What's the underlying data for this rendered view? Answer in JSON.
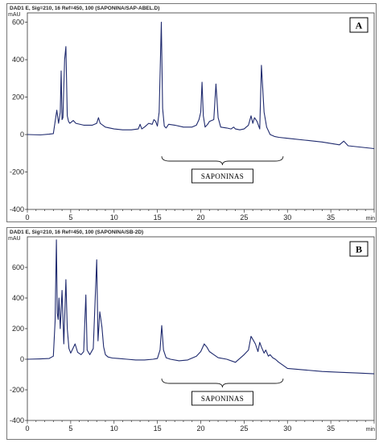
{
  "chart_data": [
    {
      "type": "line",
      "panel_label": "A",
      "header": "DAD1 E, Sig=210, 16 Ref=450, 100 (SAPONINA/SAP-ABEL.D)",
      "y_unit": "mAU",
      "x_unit": "min",
      "xlim": [
        0,
        40
      ],
      "ylim": [
        -400,
        650
      ],
      "x_ticks": [
        0,
        5,
        10,
        15,
        20,
        25,
        30,
        35
      ],
      "y_ticks": [
        -400,
        -200,
        0,
        200,
        400,
        600
      ],
      "annotation": "SAPONINAS",
      "annotation_range": [
        15.5,
        29.5
      ],
      "grid": false,
      "series": [
        {
          "color": "#1f2a6e",
          "x": [
            0.0,
            1.5,
            2.5,
            3.0,
            3.4,
            3.6,
            3.8,
            3.9,
            4.0,
            4.1,
            4.3,
            4.45,
            4.6,
            4.75,
            4.9,
            5.3,
            5.6,
            6.5,
            7.5,
            8.0,
            8.2,
            8.4,
            9.0,
            10.0,
            11.0,
            12.0,
            12.8,
            13.0,
            13.2,
            13.5,
            14.0,
            14.4,
            14.6,
            14.8,
            15.0,
            15.2,
            15.45,
            15.6,
            15.8,
            16.0,
            16.3,
            17.0,
            18.0,
            18.5,
            19.0,
            19.5,
            19.8,
            20.0,
            20.15,
            20.3,
            20.5,
            20.8,
            21.0,
            21.5,
            21.75,
            22.0,
            22.3,
            23.0,
            23.5,
            23.8,
            24.0,
            24.5,
            25.0,
            25.5,
            25.8,
            26.0,
            26.2,
            26.5,
            26.8,
            27.0,
            27.3,
            27.6,
            28.0,
            28.5,
            29.0,
            30.0,
            32.0,
            34.0,
            36.0,
            36.5,
            37.0,
            40.0
          ],
          "y": [
            0,
            -2,
            2,
            5,
            130,
            60,
            120,
            340,
            80,
            90,
            400,
            470,
            100,
            70,
            60,
            75,
            60,
            50,
            50,
            60,
            90,
            60,
            40,
            30,
            25,
            25,
            30,
            55,
            30,
            40,
            60,
            55,
            80,
            70,
            45,
            120,
            600,
            140,
            45,
            35,
            55,
            50,
            40,
            40,
            40,
            50,
            80,
            120,
            280,
            100,
            40,
            55,
            70,
            80,
            270,
            90,
            40,
            35,
            30,
            40,
            30,
            25,
            30,
            50,
            100,
            60,
            90,
            70,
            30,
            370,
            120,
            40,
            0,
            -10,
            -15,
            -20,
            -30,
            -40,
            -55,
            -35,
            -60,
            -75
          ]
        }
      ]
    },
    {
      "type": "line",
      "panel_label": "B",
      "header": "DAD1 E, Sig=210, 16 Ref=450, 100 (SAPONINA/SB-2D)",
      "y_unit": "mAU",
      "x_unit": "min",
      "xlim": [
        0,
        40
      ],
      "ylim": [
        -400,
        800
      ],
      "x_ticks": [
        0,
        5,
        10,
        15,
        20,
        25,
        30,
        35
      ],
      "y_ticks": [
        -400,
        -200,
        0,
        200,
        400,
        600
      ],
      "annotation": "SAPONINAS",
      "annotation_range": [
        15.5,
        29.5
      ],
      "grid": false,
      "series": [
        {
          "color": "#1f2a6e",
          "x": [
            0.0,
            1.5,
            2.5,
            3.0,
            3.2,
            3.35,
            3.45,
            3.55,
            3.65,
            3.8,
            4.0,
            4.2,
            4.45,
            4.6,
            4.8,
            5.0,
            5.5,
            5.8,
            6.2,
            6.5,
            6.75,
            6.9,
            7.2,
            7.6,
            8.0,
            8.15,
            8.35,
            8.6,
            8.8,
            9.0,
            9.3,
            9.8,
            10.5,
            11.5,
            12.5,
            13.5,
            14.5,
            15.0,
            15.3,
            15.5,
            15.7,
            16.0,
            16.5,
            17.5,
            18.5,
            19.5,
            20.0,
            20.4,
            20.7,
            21.0,
            21.5,
            22.0,
            23.0,
            24.0,
            25.0,
            25.5,
            25.8,
            26.0,
            26.3,
            26.6,
            26.8,
            27.0,
            27.3,
            27.5,
            27.8,
            28.0,
            28.3,
            28.6,
            29.0,
            29.5,
            30.0,
            32.0,
            34.0,
            36.0,
            38.0,
            40.0
          ],
          "y": [
            0,
            2,
            5,
            20,
            250,
            780,
            300,
            260,
            400,
            200,
            450,
            100,
            520,
            200,
            70,
            40,
            100,
            45,
            30,
            50,
            420,
            60,
            30,
            70,
            650,
            120,
            310,
            210,
            80,
            30,
            15,
            8,
            5,
            0,
            -5,
            -5,
            0,
            5,
            60,
            220,
            60,
            10,
            0,
            -10,
            -5,
            20,
            50,
            100,
            80,
            50,
            30,
            10,
            0,
            -20,
            30,
            60,
            150,
            130,
            100,
            50,
            110,
            80,
            40,
            60,
            20,
            30,
            10,
            0,
            -20,
            -40,
            -60,
            -70,
            -80,
            -85,
            -90,
            -95
          ]
        }
      ]
    }
  ]
}
